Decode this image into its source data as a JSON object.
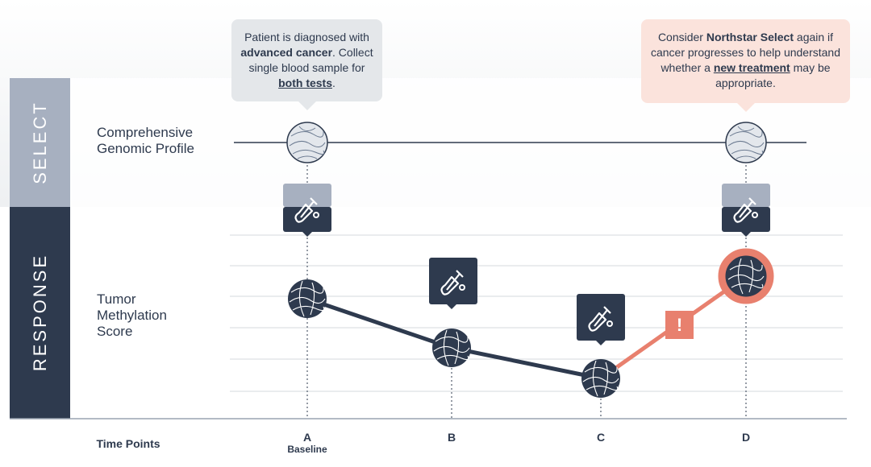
{
  "bands": {
    "select": "SELECT",
    "response": "RESPONSE"
  },
  "rows": {
    "select_label": "Comprehensive Genomic Profile",
    "response_label": "Tumor Methylation Score"
  },
  "callouts": [
    {
      "segments": [
        "Patient is diagnosed with ",
        "advanced cancer",
        ". Collect single blood sample for ",
        "both tests",
        "."
      ]
    },
    {
      "segments": [
        "Consider ",
        "Northstar Select",
        " again if cancer progresses to help understand whether a ",
        "new treatment",
        " may be appropriate."
      ]
    }
  ],
  "time_points": {
    "label": "Time Points",
    "points": [
      "A",
      "B",
      "C",
      "D"
    ],
    "baseline": "Baseline"
  },
  "alert": "!"
}
